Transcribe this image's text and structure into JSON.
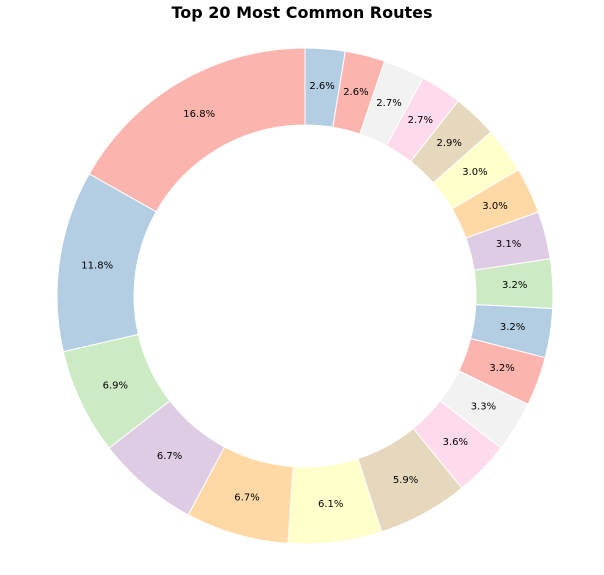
{
  "chart_data": {
    "type": "pie",
    "title": "Top 20 Most Common Routes",
    "donut": true,
    "start_angle_deg": 90,
    "direction": "clockwise",
    "values": [
      2.6,
      2.6,
      2.7,
      2.7,
      2.9,
      3.0,
      3.0,
      3.1,
      3.2,
      3.2,
      3.2,
      3.3,
      3.6,
      5.9,
      6.1,
      6.7,
      6.7,
      6.9,
      11.8,
      16.8
    ],
    "labels": [
      "2.6%",
      "2.6%",
      "2.7%",
      "2.7%",
      "2.9%",
      "3.0%",
      "3.0%",
      "3.1%",
      "3.2%",
      "3.2%",
      "3.2%",
      "3.3%",
      "3.6%",
      "5.9%",
      "6.1%",
      "6.7%",
      "6.7%",
      "6.9%",
      "11.8%",
      "16.8%"
    ],
    "colors": [
      "#b3cde3",
      "#fbb4ae",
      "#f2f2f2",
      "#fddaec",
      "#e5d8bd",
      "#ffffcc",
      "#fed9a6",
      "#decbe4",
      "#ccebc5",
      "#b3cde3",
      "#fbb4ae",
      "#f2f2f2",
      "#fddaec",
      "#e5d8bd",
      "#ffffcc",
      "#fed9a6",
      "#decbe4",
      "#ccebc5",
      "#b3cde3",
      "#fbb4ae"
    ]
  }
}
